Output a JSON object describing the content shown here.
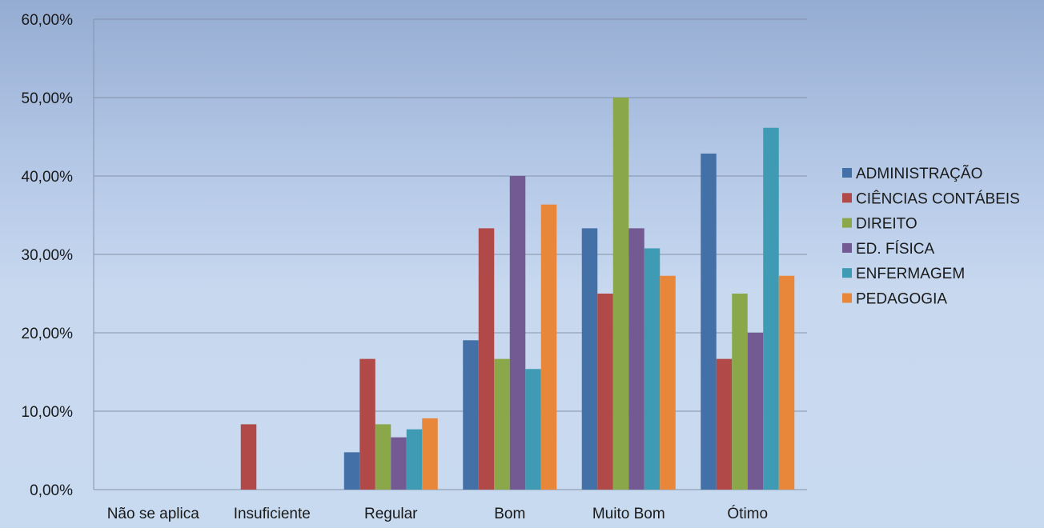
{
  "chart_data": {
    "type": "bar",
    "categories": [
      "Não se aplica",
      "Insuficiente",
      "Regular",
      "Bom",
      "Muito Bom",
      "Ótimo"
    ],
    "series": [
      {
        "name": "ADMINISTRAÇÃO",
        "color": "#4470a8",
        "values": [
          0,
          0,
          4.76,
          19.05,
          33.33,
          42.86
        ]
      },
      {
        "name": "CIÊNCIAS CONTÁBEIS",
        "color": "#b04947",
        "values": [
          0,
          8.33,
          16.67,
          33.33,
          25.0,
          16.67
        ]
      },
      {
        "name": "DIREITO",
        "color": "#8aa84a",
        "values": [
          0,
          0,
          8.33,
          16.67,
          50.0,
          25.0
        ]
      },
      {
        "name": "ED. FÍSICA",
        "color": "#735a92",
        "values": [
          0,
          0,
          6.67,
          40.0,
          33.33,
          20.0
        ]
      },
      {
        "name": "ENFERMAGEM",
        "color": "#3e9bb3",
        "values": [
          0,
          0,
          7.69,
          15.38,
          30.77,
          46.15
        ]
      },
      {
        "name": "PEDAGOGIA",
        "color": "#e8873a",
        "values": [
          0,
          0,
          9.09,
          36.36,
          27.27,
          27.27
        ]
      }
    ],
    "ylim": [
      0,
      60
    ],
    "yticks": [
      "0,00%",
      "10,00%",
      "20,00%",
      "30,00%",
      "40,00%",
      "50,00%",
      "60,00%"
    ],
    "ytick_values": [
      0,
      10,
      20,
      30,
      40,
      50,
      60
    ],
    "grid": true,
    "legend_position": "right"
  }
}
